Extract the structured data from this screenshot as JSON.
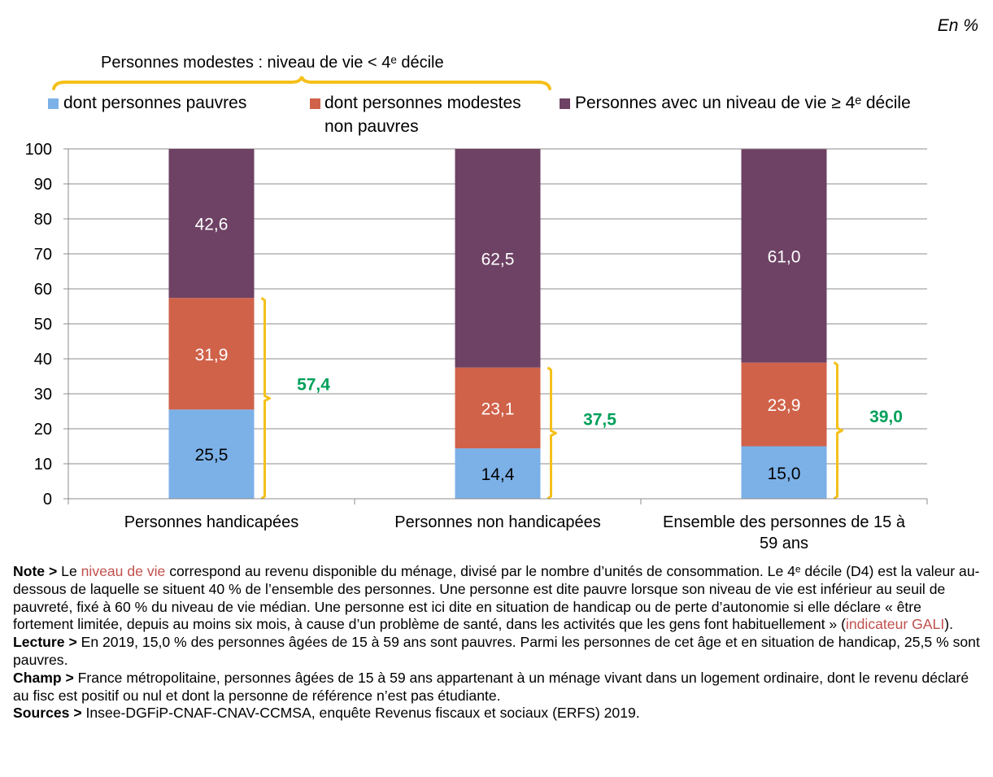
{
  "unit_label": "En %",
  "group_label": "Personnes modestes : niveau de vie < 4ᵉ décile",
  "legend": [
    {
      "label": "dont personnes pauvres",
      "color": "#7cb1e8"
    },
    {
      "label": "dont personnes modestes non pauvres",
      "color": "#d0624a"
    },
    {
      "label": "Personnes avec un niveau de vie ≥ 4ᵉ décile",
      "color": "#6e4264"
    }
  ],
  "chart_data": {
    "type": "bar",
    "stacked": true,
    "categories": [
      "Personnes handicapées",
      "Personnes non handicapées",
      "Ensemble des personnes de 15 à 59 ans"
    ],
    "series": [
      {
        "name": "dont personnes pauvres",
        "values": [
          25.5,
          14.4,
          15.0
        ],
        "labels": [
          "25,5",
          "14,4",
          "15,0"
        ],
        "color": "#7cb1e8"
      },
      {
        "name": "dont personnes modestes non pauvres",
        "values": [
          31.9,
          23.1,
          23.9
        ],
        "labels": [
          "31,9",
          "23,1",
          "23,9"
        ],
        "color": "#d0624a"
      },
      {
        "name": "Personnes avec un niveau de vie ≥ 4ᵉ décile",
        "values": [
          42.6,
          62.5,
          61.0
        ],
        "labels": [
          "42,6",
          "62,5",
          "61,0"
        ],
        "color": "#6e4264"
      }
    ],
    "modest_totals": [
      57.4,
      37.5,
      39.0
    ],
    "modest_total_labels": [
      "57,4",
      "37,5",
      "39,0"
    ],
    "total_label_color": "#00a05a",
    "bracket_color": "#f5c01b",
    "ylim": [
      0,
      100
    ],
    "yticks": [
      0,
      10,
      20,
      30,
      40,
      50,
      60,
      70,
      80,
      90,
      100
    ],
    "grid": true
  },
  "notes": [
    {
      "key": "Note >",
      "parts": [
        {
          "text": " Le "
        },
        {
          "text": "niveau de vie",
          "hl": true
        },
        {
          "text": " correspond au revenu disponible du ménage, divisé par le nombre d’unités de consommation. Le 4ᵉ décile (D4) est la valeur au-dessous de laquelle se situent 40 % de l’ensemble des personnes. Une personne est dite pauvre lorsque son niveau de vie est inférieur au seuil de pauvreté, fixé à 60 % du niveau de vie médian. Une personne est ici dite en situation de handicap ou de perte d’autonomie si elle déclare « être fortement limitée, depuis au moins six mois, à cause d’un problème de santé, dans les activités que les gens font habituellement » ("
        },
        {
          "text": "indicateur GALI",
          "hl": true
        },
        {
          "text": ")."
        }
      ]
    },
    {
      "key": "Lecture >",
      "parts": [
        {
          "text": " En 2019, 15,0 % des personnes âgées de 15 à 59 ans sont pauvres. Parmi les personnes de cet âge et en situation de handicap, 25,5 % sont pauvres."
        }
      ]
    },
    {
      "key": "Champ >",
      "parts": [
        {
          "text": " France métropolitaine, personnes âgées de 15 à 59 ans appartenant à un ménage vivant dans un logement ordinaire, dont le revenu déclaré au fisc est positif ou nul et dont la personne de référence n’est pas étudiante."
        }
      ]
    },
    {
      "key": "Sources >",
      "parts": [
        {
          "text": " Insee-DGFiP-CNAF-CNAV-CCMSA, enquête Revenus fiscaux et sociaux (ERFS) 2019."
        }
      ]
    }
  ]
}
